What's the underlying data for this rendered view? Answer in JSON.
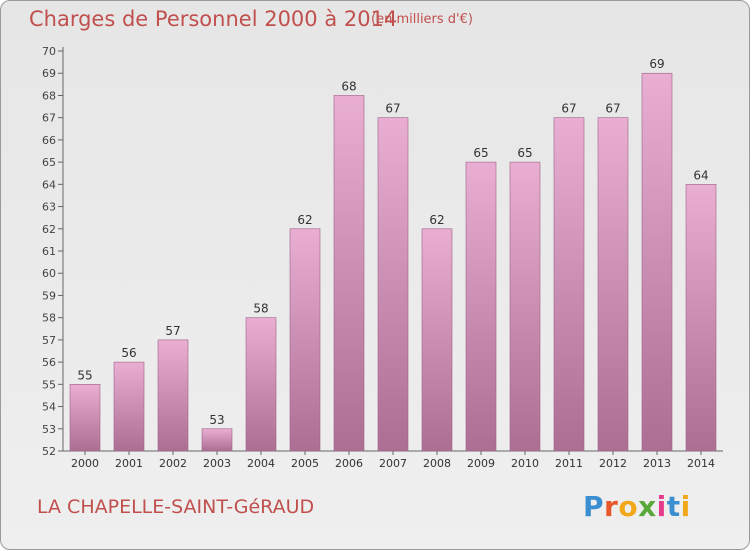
{
  "header": {
    "title": "Charges de Personnel 2000 à 2014",
    "subtitle": "(en milliers d'€)"
  },
  "footer": {
    "commune": "LA CHAPELLE-SAINT-GéRAUD",
    "logo_text": "Proxiti"
  },
  "colors": {
    "text_accent": "#c0504d",
    "bar_top": "#e9aed2",
    "bar_bottom": "#ac6f93",
    "background": "#ececec"
  },
  "chart_data": {
    "type": "bar",
    "title": "Charges de Personnel 2000 à 2014",
    "subtitle": "(en milliers d'€)",
    "categories": [
      "2000",
      "2001",
      "2002",
      "2003",
      "2004",
      "2005",
      "2006",
      "2007",
      "2008",
      "2009",
      "2010",
      "2011",
      "2012",
      "2013",
      "2014"
    ],
    "values": [
      55,
      56,
      57,
      53,
      58,
      62,
      68,
      67,
      62,
      65,
      65,
      67,
      67,
      69,
      64
    ],
    "ylim": [
      52,
      70
    ],
    "yticks": [
      52,
      53,
      54,
      55,
      56,
      57,
      58,
      59,
      60,
      61,
      62,
      63,
      64,
      65,
      66,
      67,
      68,
      69,
      70
    ],
    "grid": false,
    "data_labels": true
  }
}
